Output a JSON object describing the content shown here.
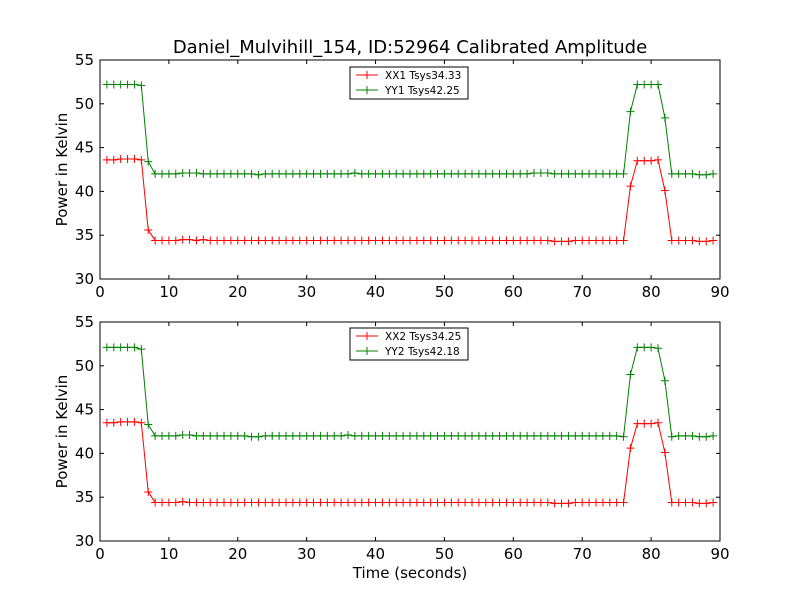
{
  "title": "Daniel_Mulvihill_154, ID:52964 Calibrated Amplitude",
  "chart_data": [
    {
      "type": "line",
      "ylabel": "Power in Kelvin",
      "xlabel": "",
      "xlim": [
        0,
        90
      ],
      "ylim": [
        30,
        55
      ],
      "xticks": [
        "0",
        "10",
        "20",
        "30",
        "40",
        "50",
        "60",
        "70",
        "80",
        "90"
      ],
      "yticks": [
        "30",
        "35",
        "40",
        "45",
        "50",
        "55"
      ],
      "legend_position": "top-center",
      "grid": false,
      "x": [
        1,
        2,
        3,
        4,
        5,
        6,
        7,
        8,
        9,
        10,
        11,
        12,
        13,
        14,
        15,
        16,
        17,
        18,
        19,
        20,
        21,
        22,
        23,
        24,
        25,
        26,
        27,
        28,
        29,
        30,
        31,
        32,
        33,
        34,
        35,
        36,
        37,
        38,
        39,
        40,
        41,
        42,
        43,
        44,
        45,
        46,
        47,
        48,
        49,
        50,
        51,
        52,
        53,
        54,
        55,
        56,
        57,
        58,
        59,
        60,
        61,
        62,
        63,
        64,
        65,
        66,
        67,
        68,
        69,
        70,
        71,
        72,
        73,
        74,
        75,
        76,
        77,
        78,
        79,
        80,
        81,
        82,
        83,
        84,
        85,
        86,
        87,
        88,
        89
      ],
      "series": [
        {
          "name": "XX1 Tsys34.33",
          "color": "#ff0000",
          "values": [
            43.6,
            43.6,
            43.7,
            43.7,
            43.7,
            43.6,
            35.6,
            34.4,
            34.4,
            34.4,
            34.4,
            34.5,
            34.5,
            34.4,
            34.5,
            34.4,
            34.4,
            34.4,
            34.4,
            34.4,
            34.4,
            34.4,
            34.4,
            34.4,
            34.4,
            34.4,
            34.4,
            34.4,
            34.4,
            34.4,
            34.4,
            34.4,
            34.4,
            34.4,
            34.4,
            34.4,
            34.4,
            34.4,
            34.4,
            34.4,
            34.4,
            34.4,
            34.4,
            34.4,
            34.4,
            34.4,
            34.4,
            34.4,
            34.4,
            34.4,
            34.4,
            34.4,
            34.4,
            34.4,
            34.4,
            34.4,
            34.4,
            34.4,
            34.4,
            34.4,
            34.4,
            34.4,
            34.4,
            34.4,
            34.4,
            34.3,
            34.3,
            34.3,
            34.4,
            34.4,
            34.4,
            34.4,
            34.4,
            34.4,
            34.4,
            34.4,
            40.6,
            43.5,
            43.5,
            43.5,
            43.6,
            40.1,
            34.4,
            34.4,
            34.4,
            34.4,
            34.3,
            34.3,
            34.4
          ]
        },
        {
          "name": "YY1 Tsys42.25",
          "color": "#008000",
          "values": [
            52.2,
            52.2,
            52.2,
            52.2,
            52.2,
            52.1,
            43.4,
            42.0,
            42.0,
            42.0,
            42.0,
            42.1,
            42.1,
            42.1,
            42.0,
            42.0,
            42.0,
            42.0,
            42.0,
            42.0,
            42.0,
            42.0,
            41.9,
            42.0,
            42.0,
            42.0,
            42.0,
            42.0,
            42.0,
            42.0,
            42.0,
            42.0,
            42.0,
            42.0,
            42.0,
            42.0,
            42.1,
            42.0,
            42.0,
            42.0,
            42.0,
            42.0,
            42.0,
            42.0,
            42.0,
            42.0,
            42.0,
            42.0,
            42.0,
            42.0,
            42.0,
            42.0,
            42.0,
            42.0,
            42.0,
            42.0,
            42.0,
            42.0,
            42.0,
            42.0,
            42.0,
            42.0,
            42.1,
            42.1,
            42.1,
            42.0,
            42.0,
            42.0,
            42.0,
            42.0,
            42.0,
            42.0,
            42.0,
            42.0,
            42.0,
            42.0,
            49.1,
            52.2,
            52.2,
            52.2,
            52.2,
            48.4,
            42.0,
            42.0,
            42.0,
            42.0,
            41.9,
            41.9,
            42.0
          ]
        }
      ]
    },
    {
      "type": "line",
      "ylabel": "Power in Kelvin",
      "xlabel": "Time (seconds)",
      "xlim": [
        0,
        90
      ],
      "ylim": [
        30,
        55
      ],
      "xticks": [
        "0",
        "10",
        "20",
        "30",
        "40",
        "50",
        "60",
        "70",
        "80",
        "90"
      ],
      "yticks": [
        "30",
        "35",
        "40",
        "45",
        "50",
        "55"
      ],
      "legend_position": "top-center",
      "grid": false,
      "x": [
        1,
        2,
        3,
        4,
        5,
        6,
        7,
        8,
        9,
        10,
        11,
        12,
        13,
        14,
        15,
        16,
        17,
        18,
        19,
        20,
        21,
        22,
        23,
        24,
        25,
        26,
        27,
        28,
        29,
        30,
        31,
        32,
        33,
        34,
        35,
        36,
        37,
        38,
        39,
        40,
        41,
        42,
        43,
        44,
        45,
        46,
        47,
        48,
        49,
        50,
        51,
        52,
        53,
        54,
        55,
        56,
        57,
        58,
        59,
        60,
        61,
        62,
        63,
        64,
        65,
        66,
        67,
        68,
        69,
        70,
        71,
        72,
        73,
        74,
        75,
        76,
        77,
        78,
        79,
        80,
        81,
        82,
        83,
        84,
        85,
        86,
        87,
        88,
        89
      ],
      "series": [
        {
          "name": "XX2 Tsys34.25",
          "color": "#ff0000",
          "values": [
            43.5,
            43.5,
            43.6,
            43.6,
            43.6,
            43.5,
            35.6,
            34.4,
            34.4,
            34.4,
            34.4,
            34.5,
            34.4,
            34.4,
            34.4,
            34.4,
            34.4,
            34.4,
            34.4,
            34.4,
            34.4,
            34.4,
            34.4,
            34.4,
            34.4,
            34.4,
            34.4,
            34.4,
            34.4,
            34.4,
            34.4,
            34.4,
            34.4,
            34.4,
            34.4,
            34.4,
            34.4,
            34.4,
            34.4,
            34.4,
            34.4,
            34.4,
            34.4,
            34.4,
            34.4,
            34.4,
            34.4,
            34.4,
            34.4,
            34.4,
            34.4,
            34.4,
            34.4,
            34.4,
            34.4,
            34.4,
            34.4,
            34.4,
            34.4,
            34.4,
            34.4,
            34.4,
            34.4,
            34.4,
            34.4,
            34.3,
            34.3,
            34.3,
            34.4,
            34.4,
            34.4,
            34.4,
            34.4,
            34.4,
            34.4,
            34.4,
            40.6,
            43.4,
            43.4,
            43.4,
            43.5,
            40.1,
            34.4,
            34.4,
            34.4,
            34.4,
            34.3,
            34.3,
            34.4
          ]
        },
        {
          "name": "YY2 Tsys42.18",
          "color": "#008000",
          "values": [
            52.1,
            52.1,
            52.1,
            52.1,
            52.1,
            51.9,
            43.3,
            42.0,
            42.0,
            42.0,
            42.0,
            42.1,
            42.1,
            42.0,
            42.0,
            42.0,
            42.0,
            42.0,
            42.0,
            42.0,
            42.0,
            41.9,
            41.9,
            42.0,
            42.0,
            42.0,
            42.0,
            42.0,
            42.0,
            42.0,
            42.0,
            42.0,
            42.0,
            42.0,
            42.0,
            42.1,
            42.0,
            42.0,
            42.0,
            42.0,
            42.0,
            42.0,
            42.0,
            42.0,
            42.0,
            42.0,
            42.0,
            42.0,
            42.0,
            42.0,
            42.0,
            42.0,
            42.0,
            42.0,
            42.0,
            42.0,
            42.0,
            42.0,
            42.0,
            42.0,
            42.0,
            42.0,
            42.0,
            42.0,
            42.0,
            42.0,
            42.0,
            42.0,
            42.0,
            42.0,
            42.0,
            42.0,
            42.0,
            42.0,
            42.0,
            41.9,
            49.0,
            52.1,
            52.1,
            52.1,
            52.0,
            48.3,
            41.9,
            42.0,
            42.0,
            42.0,
            41.9,
            41.9,
            42.0
          ]
        }
      ]
    }
  ]
}
